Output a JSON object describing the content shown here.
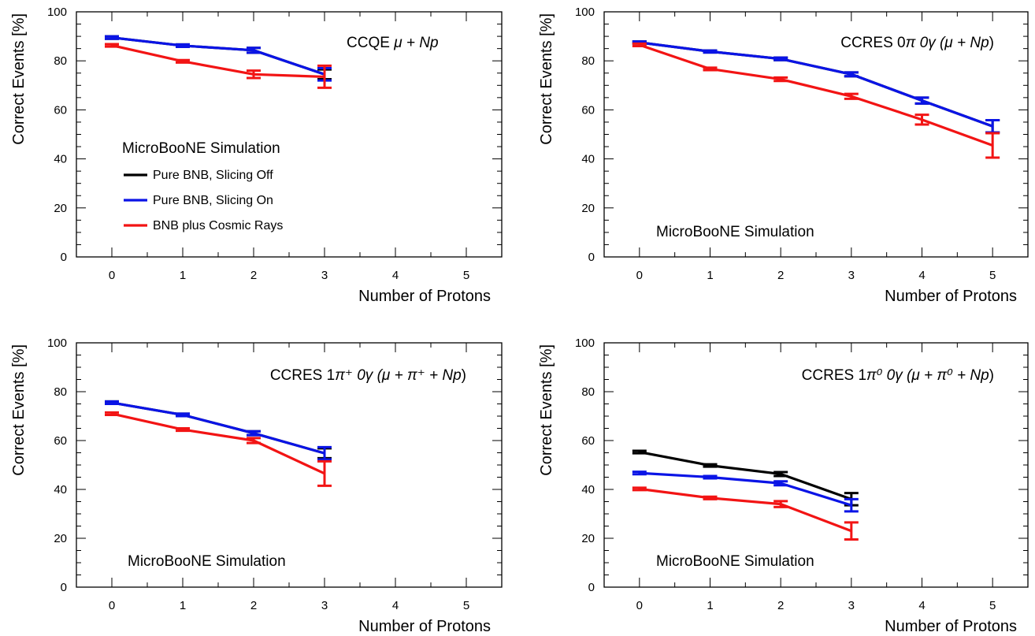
{
  "colors": {
    "pure_bnb_slicing_off": "#000000",
    "pure_bnb_slicing_on": "#0a14e6",
    "bnb_plus_cosmic": "#f21414"
  },
  "legend": {
    "title": "MicroBooNE Simulation",
    "entries": [
      "Pure BNB, Slicing Off",
      "Pure BNB, Slicing On",
      "BNB plus Cosmic Rays"
    ]
  },
  "chart_data": [
    {
      "type": "line",
      "annotation": {
        "prefix": "CCQE ",
        "body": "μ + ",
        "np": "Np",
        "suffix": ""
      },
      "xlabel": "Number of Protons",
      "ylabel": "Correct Events [%]",
      "xlim": [
        -0.5,
        5.5
      ],
      "ylim": [
        0,
        100
      ],
      "xticks": [
        "0",
        "1",
        "2",
        "3",
        "4",
        "5"
      ],
      "yticks": [
        "0",
        "20",
        "40",
        "60",
        "80",
        "100"
      ],
      "series": [
        {
          "name": "Pure BNB, Slicing Off",
          "color": "#000000",
          "x": [
            0,
            1,
            2,
            3
          ],
          "y": [
            89.5,
            86.2,
            84.3,
            74.5
          ],
          "err": [
            0.5,
            0.5,
            1.0,
            2.0
          ]
        },
        {
          "name": "Pure BNB, Slicing On",
          "color": "#0a14e6",
          "x": [
            0,
            1,
            2,
            3
          ],
          "y": [
            89.5,
            86.2,
            84.3,
            74.5
          ],
          "err": [
            0.5,
            0.5,
            1.0,
            2.5
          ]
        },
        {
          "name": "BNB plus Cosmic Rays",
          "color": "#f21414",
          "x": [
            0,
            1,
            2,
            3
          ],
          "y": [
            86.3,
            79.8,
            74.5,
            73.5
          ],
          "err": [
            0.5,
            0.5,
            1.5,
            4.5
          ]
        }
      ]
    },
    {
      "type": "line",
      "annotation": {
        "prefix": "CCRES 0",
        "body": "π 0γ (μ + ",
        "np": "Np",
        "suffix": ")"
      },
      "sim_label": "MicroBooNE Simulation",
      "xlabel": "Number of Protons",
      "ylabel": "Correct Events [%]",
      "xlim": [
        -0.5,
        5.5
      ],
      "ylim": [
        0,
        100
      ],
      "xticks": [
        "0",
        "1",
        "2",
        "3",
        "4",
        "5"
      ],
      "yticks": [
        "0",
        "20",
        "40",
        "60",
        "80",
        "100"
      ],
      "series": [
        {
          "name": "Pure BNB, Slicing Off",
          "color": "#000000",
          "x": [
            0,
            1,
            2,
            3,
            4,
            5
          ],
          "y": [
            87.5,
            83.8,
            80.8,
            74.5,
            63.8,
            53.3
          ],
          "err": [
            0.4,
            0.4,
            0.5,
            0.8,
            1.2,
            2.5
          ]
        },
        {
          "name": "Pure BNB, Slicing On",
          "color": "#0a14e6",
          "x": [
            0,
            1,
            2,
            3,
            4,
            5
          ],
          "y": [
            87.5,
            83.8,
            80.8,
            74.5,
            63.8,
            53.3
          ],
          "err": [
            0.4,
            0.4,
            0.5,
            0.8,
            1.2,
            2.5
          ]
        },
        {
          "name": "BNB plus Cosmic Rays",
          "color": "#f21414",
          "x": [
            0,
            1,
            2,
            3,
            4,
            5
          ],
          "y": [
            86.5,
            76.7,
            72.5,
            65.5,
            56.0,
            45.5
          ],
          "err": [
            0.5,
            0.5,
            0.7,
            1.0,
            2.0,
            5.0
          ]
        }
      ]
    },
    {
      "type": "line",
      "annotation": {
        "prefix": "CCRES 1",
        "body": "π⁺ 0γ (μ + π⁺ + ",
        "np": "Np",
        "suffix": ")"
      },
      "sim_label": "MicroBooNE Simulation",
      "xlabel": "Number of Protons",
      "ylabel": "Correct Events [%]",
      "xlim": [
        -0.5,
        5.5
      ],
      "ylim": [
        0,
        100
      ],
      "xticks": [
        "0",
        "1",
        "2",
        "3",
        "4",
        "5"
      ],
      "yticks": [
        "0",
        "20",
        "40",
        "60",
        "80",
        "100"
      ],
      "series": [
        {
          "name": "Pure BNB, Slicing Off",
          "color": "#000000",
          "x": [
            0,
            1,
            2,
            3
          ],
          "y": [
            75.5,
            70.5,
            63.0,
            54.8
          ],
          "err": [
            0.5,
            0.5,
            0.8,
            2.0
          ]
        },
        {
          "name": "Pure BNB, Slicing On",
          "color": "#0a14e6",
          "x": [
            0,
            1,
            2,
            3
          ],
          "y": [
            75.5,
            70.5,
            63.0,
            54.8
          ],
          "err": [
            0.5,
            0.5,
            0.8,
            2.5
          ]
        },
        {
          "name": "BNB plus Cosmic Rays",
          "color": "#f21414",
          "x": [
            0,
            1,
            2,
            3
          ],
          "y": [
            71.0,
            64.5,
            60.0,
            46.5
          ],
          "err": [
            0.5,
            0.5,
            1.0,
            5.0
          ]
        }
      ]
    },
    {
      "type": "line",
      "annotation": {
        "prefix": "CCRES 1",
        "body": "π⁰ 0γ (μ + π⁰ + ",
        "np": "Np",
        "suffix": ")"
      },
      "sim_label": "MicroBooNE Simulation",
      "xlabel": "Number of Protons",
      "ylabel": "Correct Events [%]",
      "xlim": [
        -0.5,
        5.5
      ],
      "ylim": [
        0,
        100
      ],
      "xticks": [
        "0",
        "1",
        "2",
        "3",
        "4",
        "5"
      ],
      "yticks": [
        "0",
        "20",
        "40",
        "60",
        "80",
        "100"
      ],
      "series": [
        {
          "name": "Pure BNB, Slicing Off",
          "color": "#000000",
          "x": [
            0,
            1,
            2,
            3
          ],
          "y": [
            55.3,
            49.8,
            46.3,
            36.0
          ],
          "err": [
            0.5,
            0.5,
            0.8,
            2.5
          ]
        },
        {
          "name": "Pure BNB, Slicing On",
          "color": "#0a14e6",
          "x": [
            0,
            1,
            2,
            3
          ],
          "y": [
            46.7,
            45.0,
            42.5,
            33.5
          ],
          "err": [
            0.5,
            0.5,
            0.8,
            2.5
          ]
        },
        {
          "name": "BNB plus Cosmic Rays",
          "color": "#f21414",
          "x": [
            0,
            1,
            2,
            3
          ],
          "y": [
            40.2,
            36.5,
            34.0,
            23.0
          ],
          "err": [
            0.5,
            0.5,
            1.2,
            3.5
          ]
        }
      ]
    }
  ]
}
